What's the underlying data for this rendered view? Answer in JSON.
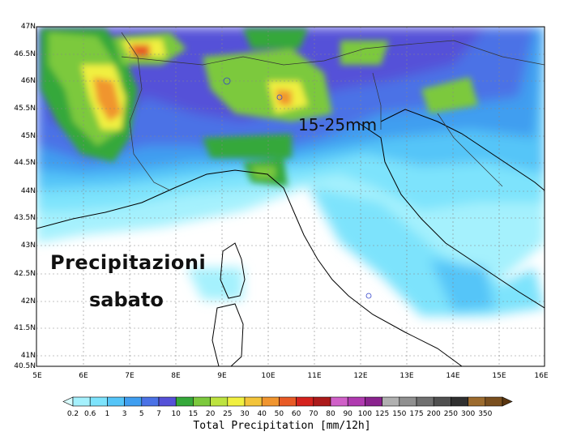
{
  "map": {
    "lat_ticks": [
      "47N",
      "46.5N",
      "46N",
      "45.5N",
      "45N",
      "44.5N",
      "44N",
      "43.5N",
      "43N",
      "42.5N",
      "42N",
      "41.5N",
      "41N",
      "40.5N"
    ],
    "lon_ticks": [
      "5E",
      "6E",
      "7E",
      "8E",
      "9E",
      "10E",
      "11E",
      "12E",
      "13E",
      "14E",
      "15E",
      "16E"
    ]
  },
  "annotations": {
    "title_line1": "Precipitazioni",
    "title_line2": "sabato",
    "range_label": "15-25mm"
  },
  "colorbar": {
    "title": "Total Precipitation [mm/12h]",
    "labels": [
      "0.2",
      "0.6",
      "1",
      "3",
      "5",
      "7",
      "10",
      "15",
      "20",
      "25",
      "30",
      "40",
      "50",
      "60",
      "70",
      "80",
      "90",
      "100",
      "125",
      "150",
      "175",
      "200",
      "250",
      "300",
      "350"
    ],
    "colors": [
      "#d8fdfe",
      "#a5f1fd",
      "#7de3fc",
      "#55c5f8",
      "#3f9ef0",
      "#4b72e6",
      "#5551d8",
      "#35a83a",
      "#7cc93d",
      "#bde33f",
      "#f1f040",
      "#f3c43a",
      "#f0952f",
      "#e85a25",
      "#d5221d",
      "#ac1a1a",
      "#d060c8",
      "#b03ab0",
      "#8a238e",
      "#b0b0b0",
      "#909090",
      "#707070",
      "#505050",
      "#303030",
      "#9c6b2e",
      "#7a4f1e",
      "#5a3610"
    ]
  }
}
